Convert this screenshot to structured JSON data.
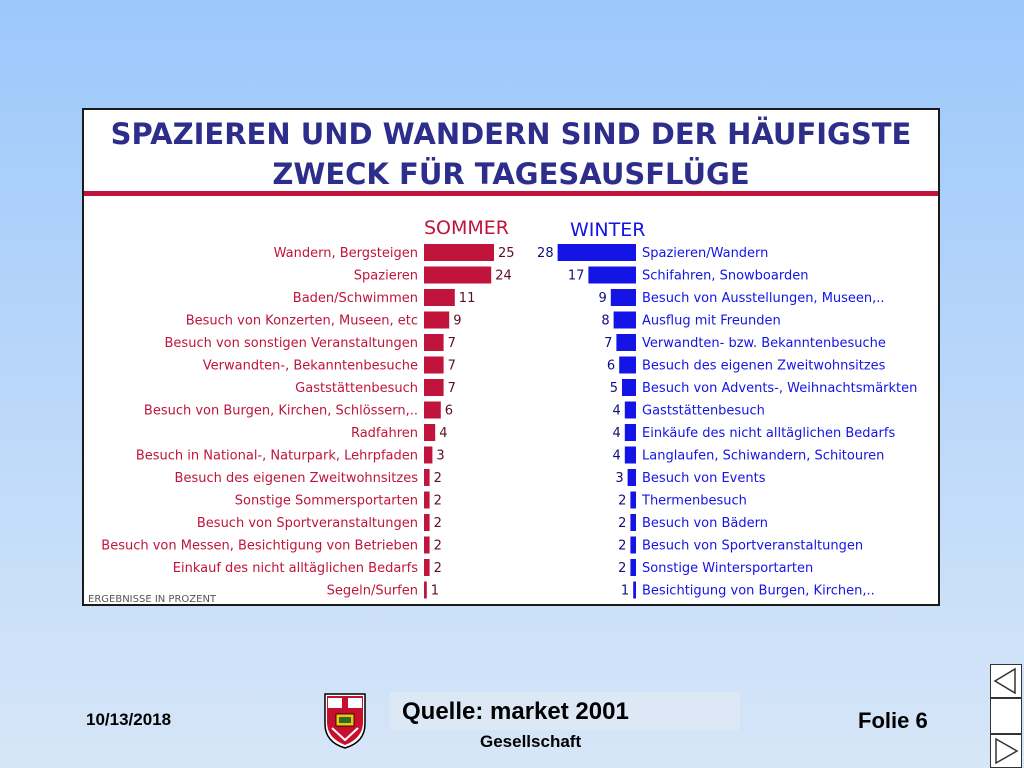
{
  "chart_data": {
    "type": "bar",
    "title_line1": "SPAZIEREN UND WANDERN SIND DER HÄUFIGSTE",
    "title_line2": "ZWECK FÜR TAGESAUSFLÜGE",
    "note": "ERGEBNISSE IN PROZENT",
    "series": [
      {
        "name": "SOMMER",
        "color": "#c0143c",
        "categories": [
          "Wandern, Bergsteigen",
          "Spazieren",
          "Baden/Schwimmen",
          "Besuch von Konzerten, Museen, etc",
          "Besuch von sonstigen Veranstaltungen",
          "Verwandten-, Bekanntenbesuche",
          "Gaststättenbesuch",
          "Besuch von Burgen, Kirchen, Schlössern,..",
          "Radfahren",
          "Besuch in National-, Naturpark, Lehrpfaden",
          "Besuch des eigenen Zweitwohnsitzes",
          "Sonstige Sommersportarten",
          "Besuch von Sportveranstaltungen",
          "Besuch von Messen, Besichtigung von Betrieben",
          "Einkauf des nicht alltäglichen Bedarfs",
          "Segeln/Surfen"
        ],
        "values": [
          25,
          24,
          11,
          9,
          7,
          7,
          7,
          6,
          4,
          3,
          2,
          2,
          2,
          2,
          2,
          1
        ]
      },
      {
        "name": "WINTER",
        "color": "#1414e6",
        "categories": [
          "Spazieren/Wandern",
          "Schifahren, Snowboarden",
          "Besuch von Ausstellungen, Museen,..",
          "Ausflug mit Freunden",
          "Verwandten- bzw. Bekanntenbesuche",
          "Besuch des eigenen Zweitwohnsitzes",
          "Besuch von Advents-, Weihnachtsmärkten",
          "Gaststättenbesuch",
          "Einkäufe des nicht alltäglichen Bedarfs",
          "Langlaufen, Schiwandern, Schitouren",
          "Besuch von Events",
          "Thermenbesuch",
          "Besuch von Bädern",
          "Besuch von Sportveranstaltungen",
          "Sonstige Wintersportarten",
          "Besichtigung von Burgen, Kirchen,.."
        ],
        "values": [
          28,
          17,
          9,
          8,
          7,
          6,
          5,
          4,
          4,
          4,
          3,
          2,
          2,
          2,
          2,
          1
        ]
      }
    ]
  },
  "footer": {
    "date": "10/13/2018",
    "source": "Quelle: market 2001",
    "subtitle": "Gesellschaft",
    "slide": "Folie 6"
  },
  "nav": {
    "prev_icon": "triangle-left-icon",
    "next_icon": "triangle-right-icon"
  }
}
